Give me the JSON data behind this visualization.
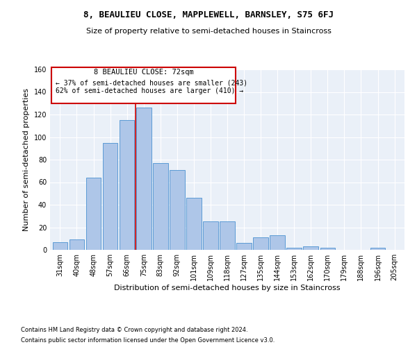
{
  "title": "8, BEAULIEU CLOSE, MAPPLEWELL, BARNSLEY, S75 6FJ",
  "subtitle": "Size of property relative to semi-detached houses in Staincross",
  "xlabel": "Distribution of semi-detached houses by size in Staincross",
  "ylabel": "Number of semi-detached properties",
  "bin_labels": [
    "31sqm",
    "40sqm",
    "48sqm",
    "57sqm",
    "66sqm",
    "75sqm",
    "83sqm",
    "92sqm",
    "101sqm",
    "109sqm",
    "118sqm",
    "127sqm",
    "135sqm",
    "144sqm",
    "153sqm",
    "162sqm",
    "170sqm",
    "179sqm",
    "188sqm",
    "196sqm",
    "205sqm"
  ],
  "bar_heights": [
    7,
    9,
    64,
    95,
    115,
    126,
    77,
    71,
    46,
    25,
    25,
    6,
    11,
    13,
    2,
    3,
    2,
    0,
    0,
    2,
    0
  ],
  "bar_color": "#aec6e8",
  "bar_edge_color": "#5b9bd5",
  "annotation_title": "8 BEAULIEU CLOSE: 72sqm",
  "annotation_line1": "← 37% of semi-detached houses are smaller (243)",
  "annotation_line2": "62% of semi-detached houses are larger (410) →",
  "footer1": "Contains HM Land Registry data © Crown copyright and database right 2024.",
  "footer2": "Contains public sector information licensed under the Open Government Licence v3.0.",
  "ylim": [
    0,
    160
  ],
  "background_color": "#eaf0f8",
  "vline_color": "#cc0000",
  "vline_bin": 5
}
